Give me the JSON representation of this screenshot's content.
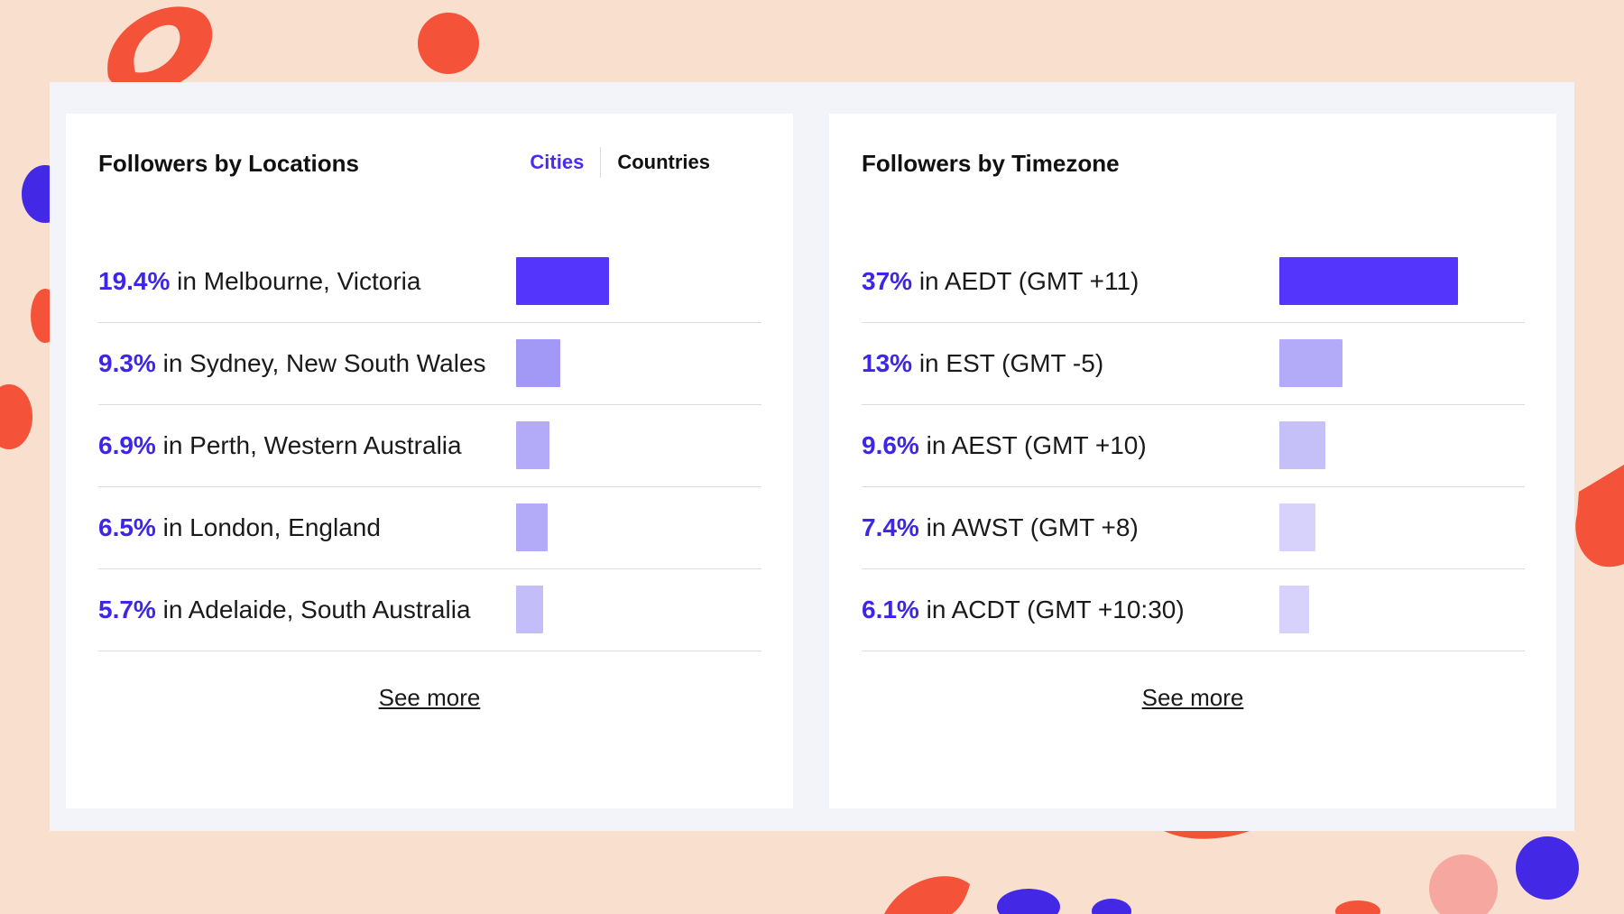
{
  "colors": {
    "background": "#f9dfce",
    "accent": "#4a2cf0",
    "bar_strong": "#5335fb",
    "bar_shades": [
      "#5335fb",
      "#a199f5",
      "#b3abf7",
      "#b3abf7",
      "#c3bdf9"
    ],
    "tz_bar_shades": [
      "#5335fb",
      "#b3abf7",
      "#c6c0f8",
      "#d6d2fb",
      "#d6d2fb"
    ]
  },
  "locations": {
    "title": "Followers by Locations",
    "tabs": [
      {
        "label": "Cities",
        "active": true
      },
      {
        "label": "Countries",
        "active": false
      }
    ],
    "rows": [
      {
        "pct": "19.4%",
        "text": " in Melbourne, Victoria",
        "value": 19.4
      },
      {
        "pct": "9.3%",
        "text": " in Sydney, New South Wales",
        "value": 9.3
      },
      {
        "pct": "6.9%",
        "text": " in Perth, Western Australia",
        "value": 6.9
      },
      {
        "pct": "6.5%",
        "text": " in London, England",
        "value": 6.5
      },
      {
        "pct": "5.7%",
        "text": " in Adelaide, South Australia",
        "value": 5.7
      }
    ],
    "see_more": "See more"
  },
  "timezones": {
    "title": "Followers by Timezone",
    "rows": [
      {
        "pct": "37%",
        "text": " in AEDT (GMT +11)",
        "value": 37
      },
      {
        "pct": "13%",
        "text": " in EST (GMT -5)",
        "value": 13
      },
      {
        "pct": "9.6%",
        "text": " in AEST (GMT +10)",
        "value": 9.6
      },
      {
        "pct": "7.4%",
        "text": " in AWST (GMT +8)",
        "value": 7.4
      },
      {
        "pct": "6.1%",
        "text": " in ACDT (GMT +10:30)",
        "value": 6.1
      }
    ],
    "see_more": "See more"
  }
}
